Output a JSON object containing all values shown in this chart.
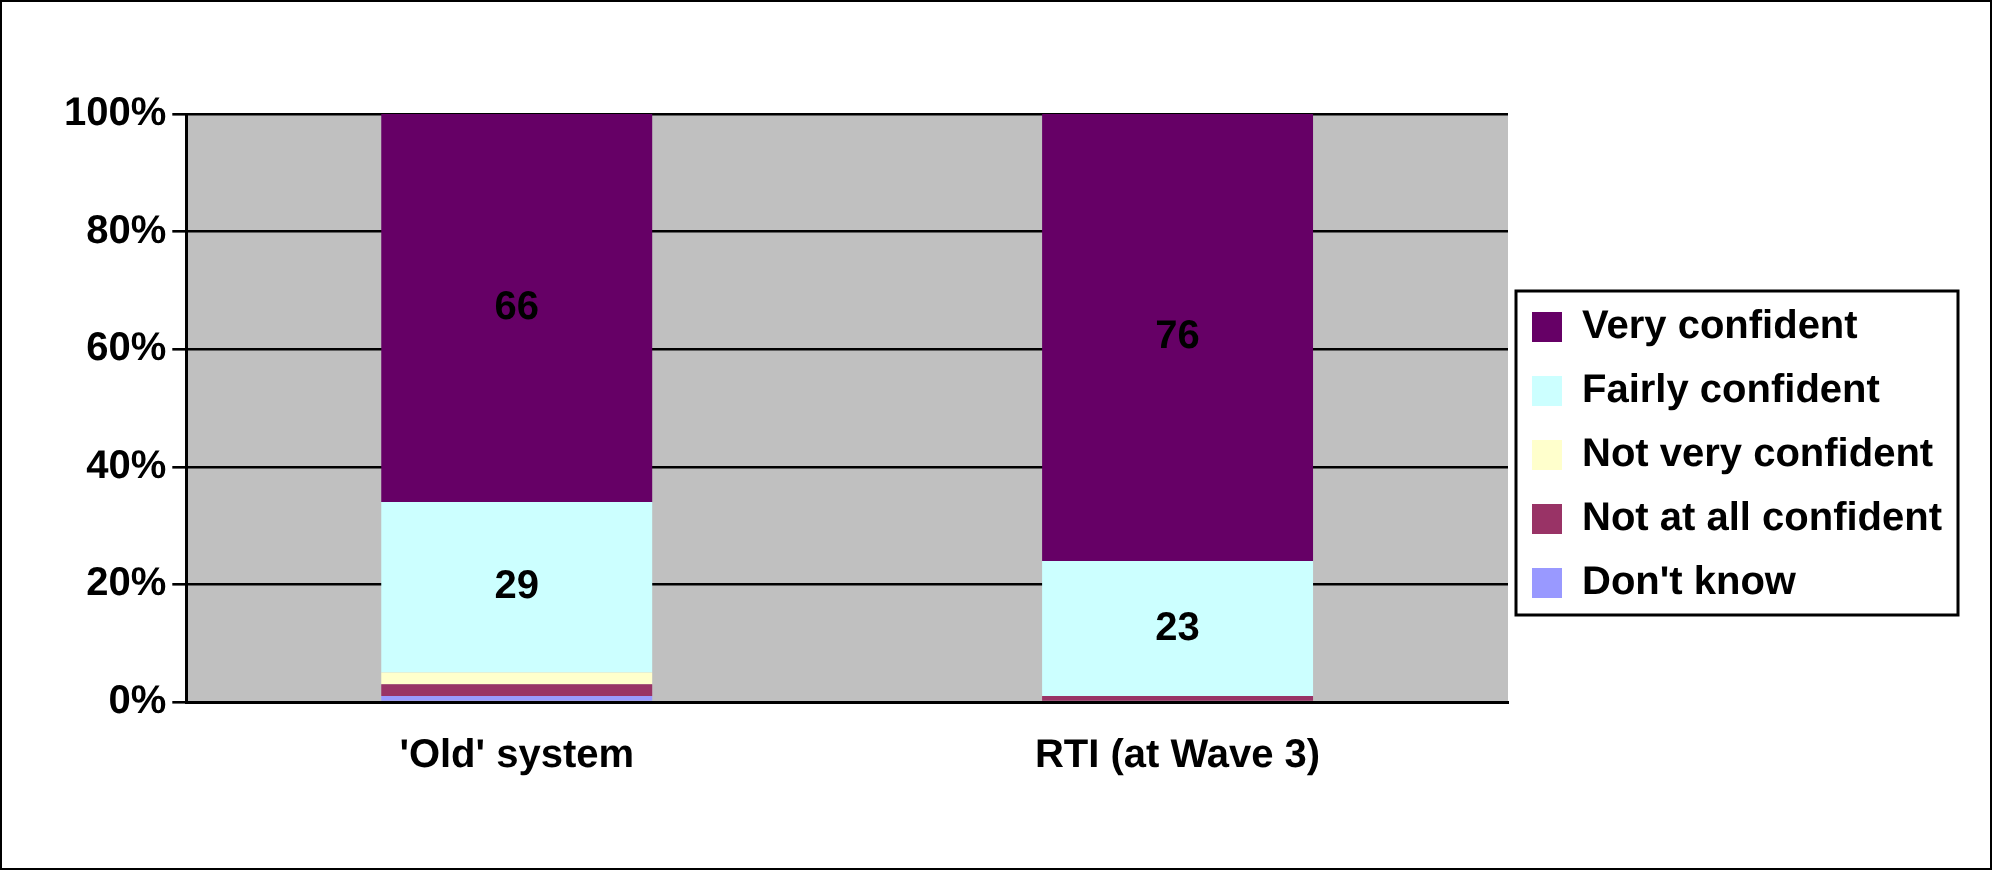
{
  "chart_data": {
    "type": "bar",
    "stacked": true,
    "categories": [
      "'Old' system",
      "RTI (at Wave 3)"
    ],
    "series": [
      {
        "name": "Don't know",
        "color": "#9999ff",
        "values": [
          1,
          0
        ]
      },
      {
        "name": "Not at all confident",
        "color": "#993366",
        "values": [
          2,
          1
        ]
      },
      {
        "name": "Not very confident",
        "color": "#ffffcc",
        "values": [
          2,
          0
        ]
      },
      {
        "name": "Fairly confident",
        "color": "#ccffff",
        "values": [
          29,
          23
        ],
        "value_labels": [
          "29",
          "23"
        ]
      },
      {
        "name": "Very confident",
        "color": "#660066",
        "values": [
          66,
          76
        ],
        "value_labels": [
          "66",
          "76"
        ]
      }
    ],
    "ylim": [
      0,
      100
    ],
    "yticks": [
      {
        "value": 0,
        "label": "0%"
      },
      {
        "value": 20,
        "label": "20%"
      },
      {
        "value": 40,
        "label": "40%"
      },
      {
        "value": 60,
        "label": "60%"
      },
      {
        "value": 80,
        "label": "80%"
      },
      {
        "value": 100,
        "label": "100%"
      }
    ],
    "grid": "y",
    "legend": "right"
  }
}
